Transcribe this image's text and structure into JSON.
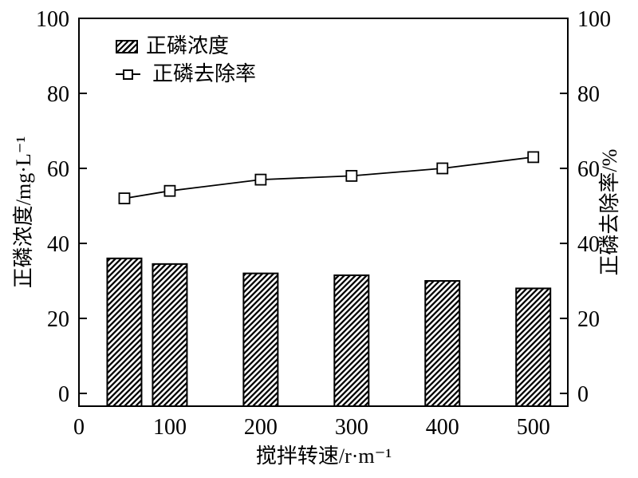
{
  "chart_data": {
    "type": "bar",
    "subtype": "bar-and-line-dual-axis",
    "categories": [
      50,
      100,
      200,
      300,
      400,
      500
    ],
    "series": [
      {
        "name": "正磷浓度",
        "type": "bar",
        "axis": "left",
        "style": "diagonal-hatch",
        "values": [
          36,
          34.5,
          32,
          31.5,
          30,
          28
        ]
      },
      {
        "name": "正磷去除率",
        "type": "line",
        "axis": "right",
        "marker": "open-square",
        "values": [
          52,
          54,
          57,
          58,
          60,
          63
        ]
      }
    ],
    "title": "",
    "xlabel": "搅拌转速/r·m⁻¹",
    "ylabel_left": "正磷浓度/mg·L⁻¹",
    "ylabel_right": "正磷去除率/%",
    "x_ticks": [
      0,
      100,
      200,
      300,
      400,
      500
    ],
    "y_ticks_left": [
      0,
      20,
      40,
      60,
      80,
      100
    ],
    "y_ticks_right": [
      0,
      20,
      40,
      60,
      80,
      100
    ],
    "ylim_left": [
      0,
      100
    ],
    "ylim_right": [
      0,
      100
    ],
    "grid": false,
    "legend_position": "top-left-inside",
    "colors": {
      "foreground": "#000000",
      "background": "#ffffff"
    }
  }
}
